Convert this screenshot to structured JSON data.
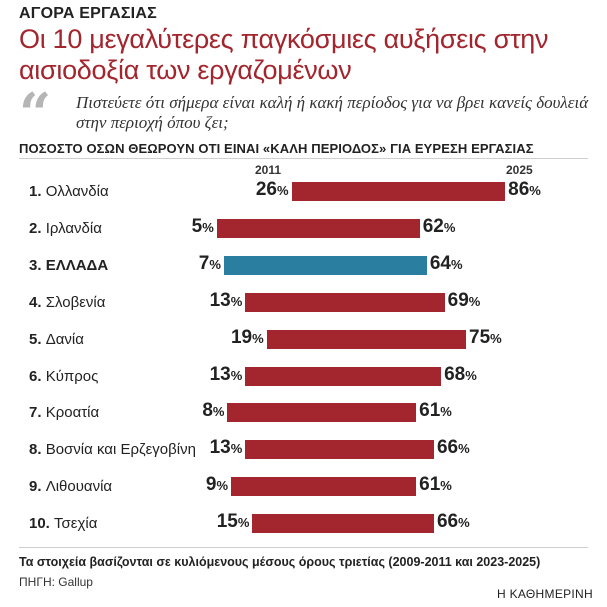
{
  "kicker": "ΑΓΟΡΑ ΕΡΓΑΣΙΑΣ",
  "headline": "Οι 10 μεγαλύτερες παγκόσμιες αυξήσεις στην αισιοδοξία των εργαζομένων",
  "question": "Πιστεύετε ότι σήμερα είναι καλή ή κακή περίοδος για να βρει κανείς δουλειά στην περιοχή όπου ζει;",
  "subhead": "ΠΟΣΟΣΤΟ ΟΣΩΝ ΘΕΩΡΟΥΝ ΟΤΙ ΕΙΝΑΙ «ΚΑΛΗ ΠΕΡΙΟΔΟΣ» ΓΙΑ ΕΥΡΕΣΗ ΕΡΓΑΣΙΑΣ",
  "note": "Τα στοιχεία βασίζονται σε κυλιόμενους μέσους όρους τριετίας (2009-2011 και 2023-2025)",
  "source": "ΠΗΓΗ: Gallup",
  "brand": "Η ΚΑΘΗΜΕΡΙΝΗ",
  "colors": {
    "bar": "#a3252d",
    "highlight_bar": "#2a7fa0",
    "headline": "#a3252d"
  },
  "chart_data": {
    "type": "bar",
    "orientation": "horizontal",
    "title": "Οι 10 μεγαλύτερες παγκόσμιες αυξήσεις στην αισιοδοξία των εργαζομένων",
    "unit": "%",
    "series_labels": [
      "2011",
      "2025"
    ],
    "highlight": "ΕΛΛΑΔΑ",
    "categories": [
      "Ολλανδία",
      "Ιρλανδία",
      "ΕΛΛΑΔΑ",
      "Σλοβενία",
      "Δανία",
      "Κύπρος",
      "Κροατία",
      "Βοσνία και Ερζεγοβίνη",
      "Λιθουανία",
      "Τσεχία"
    ],
    "rows": [
      {
        "rank": "1.",
        "label": "Ολλανδία",
        "v2011": 26,
        "v2025": 86
      },
      {
        "rank": "2.",
        "label": "Ιρλανδία",
        "v2011": 5,
        "v2025": 62
      },
      {
        "rank": "3.",
        "label": "ΕΛΛΑΔΑ",
        "v2011": 7,
        "v2025": 64
      },
      {
        "rank": "4.",
        "label": "Σλοβενία",
        "v2011": 13,
        "v2025": 69
      },
      {
        "rank": "5.",
        "label": "Δανία",
        "v2011": 19,
        "v2025": 75
      },
      {
        "rank": "6.",
        "label": "Κύπρος",
        "v2011": 13,
        "v2025": 68
      },
      {
        "rank": "7.",
        "label": "Κροατία",
        "v2011": 8,
        "v2025": 61
      },
      {
        "rank": "8.",
        "label": "Βοσνία και Ερζεγοβίνη",
        "v2011": 13,
        "v2025": 66
      },
      {
        "rank": "9.",
        "label": "Λιθουανία",
        "v2011": 9,
        "v2025": 61
      },
      {
        "rank": "10.",
        "label": "Τσεχία",
        "v2011": 15,
        "v2025": 66
      }
    ]
  }
}
